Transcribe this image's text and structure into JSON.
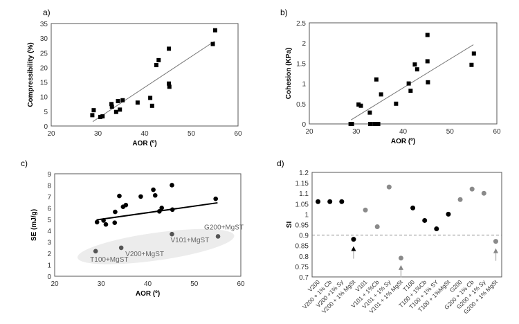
{
  "chart_data": [
    {
      "panel_label": "a)",
      "type": "scatter",
      "xlabel": "AOR (º)",
      "ylabel": "Compressibility (%)",
      "xlim": [
        20,
        60
      ],
      "ylim": [
        0,
        35
      ],
      "xticks": [
        "20",
        "30",
        "40",
        "50",
        "60"
      ],
      "yticks": [
        "0",
        "5",
        "10",
        "15",
        "20",
        "25",
        "30",
        "35"
      ],
      "points": [
        [
          28.8,
          3.7
        ],
        [
          29.1,
          5.4
        ],
        [
          30.5,
          3.1
        ],
        [
          31,
          3.3
        ],
        [
          32.9,
          7.5
        ],
        [
          33,
          6.6
        ],
        [
          33.9,
          4.8
        ],
        [
          34.3,
          8.5
        ],
        [
          34.7,
          5.6
        ],
        [
          35.3,
          8.8
        ],
        [
          38.5,
          8
        ],
        [
          41.2,
          9.6
        ],
        [
          41.6,
          6.9
        ],
        [
          42.5,
          20.8
        ],
        [
          43,
          22.5
        ],
        [
          45.2,
          26.4
        ],
        [
          45.2,
          14.5
        ],
        [
          45.3,
          13.4
        ],
        [
          54.6,
          28
        ],
        [
          55.1,
          32.7
        ]
      ],
      "trendline": [
        [
          28.9,
          1.5
        ],
        [
          55,
          29
        ]
      ],
      "marker": "square"
    },
    {
      "panel_label": "b)",
      "type": "scatter",
      "xlabel": "AOR (º)",
      "ylabel": "Cohesion (KPa)",
      "xlim": [
        20,
        60
      ],
      "ylim": [
        0,
        2.5
      ],
      "xticks": [
        "20",
        "30",
        "40",
        "50",
        "60"
      ],
      "yticks": [
        "0",
        "0.5",
        "1",
        "1.5",
        "2",
        "2.5"
      ],
      "points": [
        [
          28.8,
          0
        ],
        [
          29.1,
          0
        ],
        [
          30.5,
          0.48
        ],
        [
          31,
          0.45
        ],
        [
          32.9,
          0.28
        ],
        [
          33,
          0
        ],
        [
          33.9,
          0
        ],
        [
          34.3,
          1.1
        ],
        [
          34.7,
          0
        ],
        [
          35.3,
          0.73
        ],
        [
          38.5,
          0.5
        ],
        [
          41.2,
          1.0
        ],
        [
          41.6,
          0.82
        ],
        [
          42.5,
          1.47
        ],
        [
          43,
          1.35
        ],
        [
          45.2,
          2.2
        ],
        [
          45.2,
          1.55
        ],
        [
          45.3,
          1.03
        ],
        [
          54.6,
          1.46
        ],
        [
          55.1,
          1.74
        ]
      ],
      "trendline": [
        [
          28.9,
          0.1
        ],
        [
          55,
          1.96
        ]
      ],
      "marker": "square"
    },
    {
      "panel_label": "c)",
      "type": "scatter",
      "xlabel": "AOR (º)",
      "ylabel": "SE (mJ/g)",
      "xlim": [
        20,
        60
      ],
      "ylim": [
        0,
        9
      ],
      "xticks": [
        "20",
        "30",
        "40",
        "50",
        "60"
      ],
      "yticks": [
        "0",
        "1",
        "2",
        "3",
        "4",
        "5",
        "6",
        "7",
        "8",
        "9"
      ],
      "points": [
        [
          29.1,
          4.75
        ],
        [
          30.5,
          4.9
        ],
        [
          31,
          4.55
        ],
        [
          32.9,
          4.7
        ],
        [
          33,
          5.65
        ],
        [
          33.9,
          7.05
        ],
        [
          34.7,
          6.1
        ],
        [
          35.3,
          6.25
        ],
        [
          38.5,
          7
        ],
        [
          41.2,
          7.6
        ],
        [
          41.6,
          7.1
        ],
        [
          42.5,
          5.7
        ],
        [
          43,
          6
        ],
        [
          45.2,
          8
        ],
        [
          45.3,
          5.85
        ],
        [
          54.6,
          6.8
        ]
      ],
      "highlighted_points": [
        {
          "x": 28.8,
          "y": 2.2,
          "label": "T100+MgST"
        },
        {
          "x": 34.3,
          "y": 2.5,
          "label": "V200+MgST"
        },
        {
          "x": 45.2,
          "y": 3.7,
          "label": "V101+MgST"
        },
        {
          "x": 55.1,
          "y": 3.5,
          "label": "G200+MgST"
        }
      ],
      "trendline": [
        [
          29,
          4.95
        ],
        [
          55,
          6.45
        ]
      ],
      "marker": "circle",
      "highlight_color": "#555555"
    },
    {
      "panel_label": "d)",
      "type": "scatter",
      "xlabel": "",
      "ylabel": "SI",
      "ylim": [
        0.7,
        1.2
      ],
      "yticks": [
        "0.7",
        "0.75",
        "0.8",
        "0.85",
        "0.9",
        "0.95",
        "1",
        "1.05",
        "1.1",
        "1.15",
        "1.2"
      ],
      "categories": [
        "V200",
        "V200 + 1% Cb",
        "V200 +1% Sy",
        "V200 + 1% MgSt",
        "V101",
        "V101 + 1%Cb",
        "V101 + 1% Sy",
        "V101 + 1% MgSt",
        "T100",
        "T100 + 1%Cb",
        "T100 + 1% SY",
        "T100 + 1%MgSt",
        "G200",
        "G200 + 1% Cb",
        "G200 + 1% Sy",
        "G200 + 1% MgSt"
      ],
      "values": [
        1.06,
        1.06,
        1.06,
        0.88,
        1.02,
        0.94,
        1.13,
        0.79,
        1.03,
        0.97,
        0.93,
        1.0,
        1.07,
        1.12,
        1.1,
        0.87
      ],
      "point_colors": [
        "#000000",
        "#000000",
        "#000000",
        "#000000",
        "#8a8a8a",
        "#8a8a8a",
        "#8a8a8a",
        "#8a8a8a",
        "#000000",
        "#000000",
        "#000000",
        "#000000",
        "#8a8a8a",
        "#8a8a8a",
        "#8a8a8a",
        "#8a8a8a"
      ],
      "threshold": 0.9,
      "arrows_at": [
        "V200 + 1% MgSt",
        "V101 + 1% MgSt",
        "G200 + 1% MgSt"
      ]
    }
  ]
}
